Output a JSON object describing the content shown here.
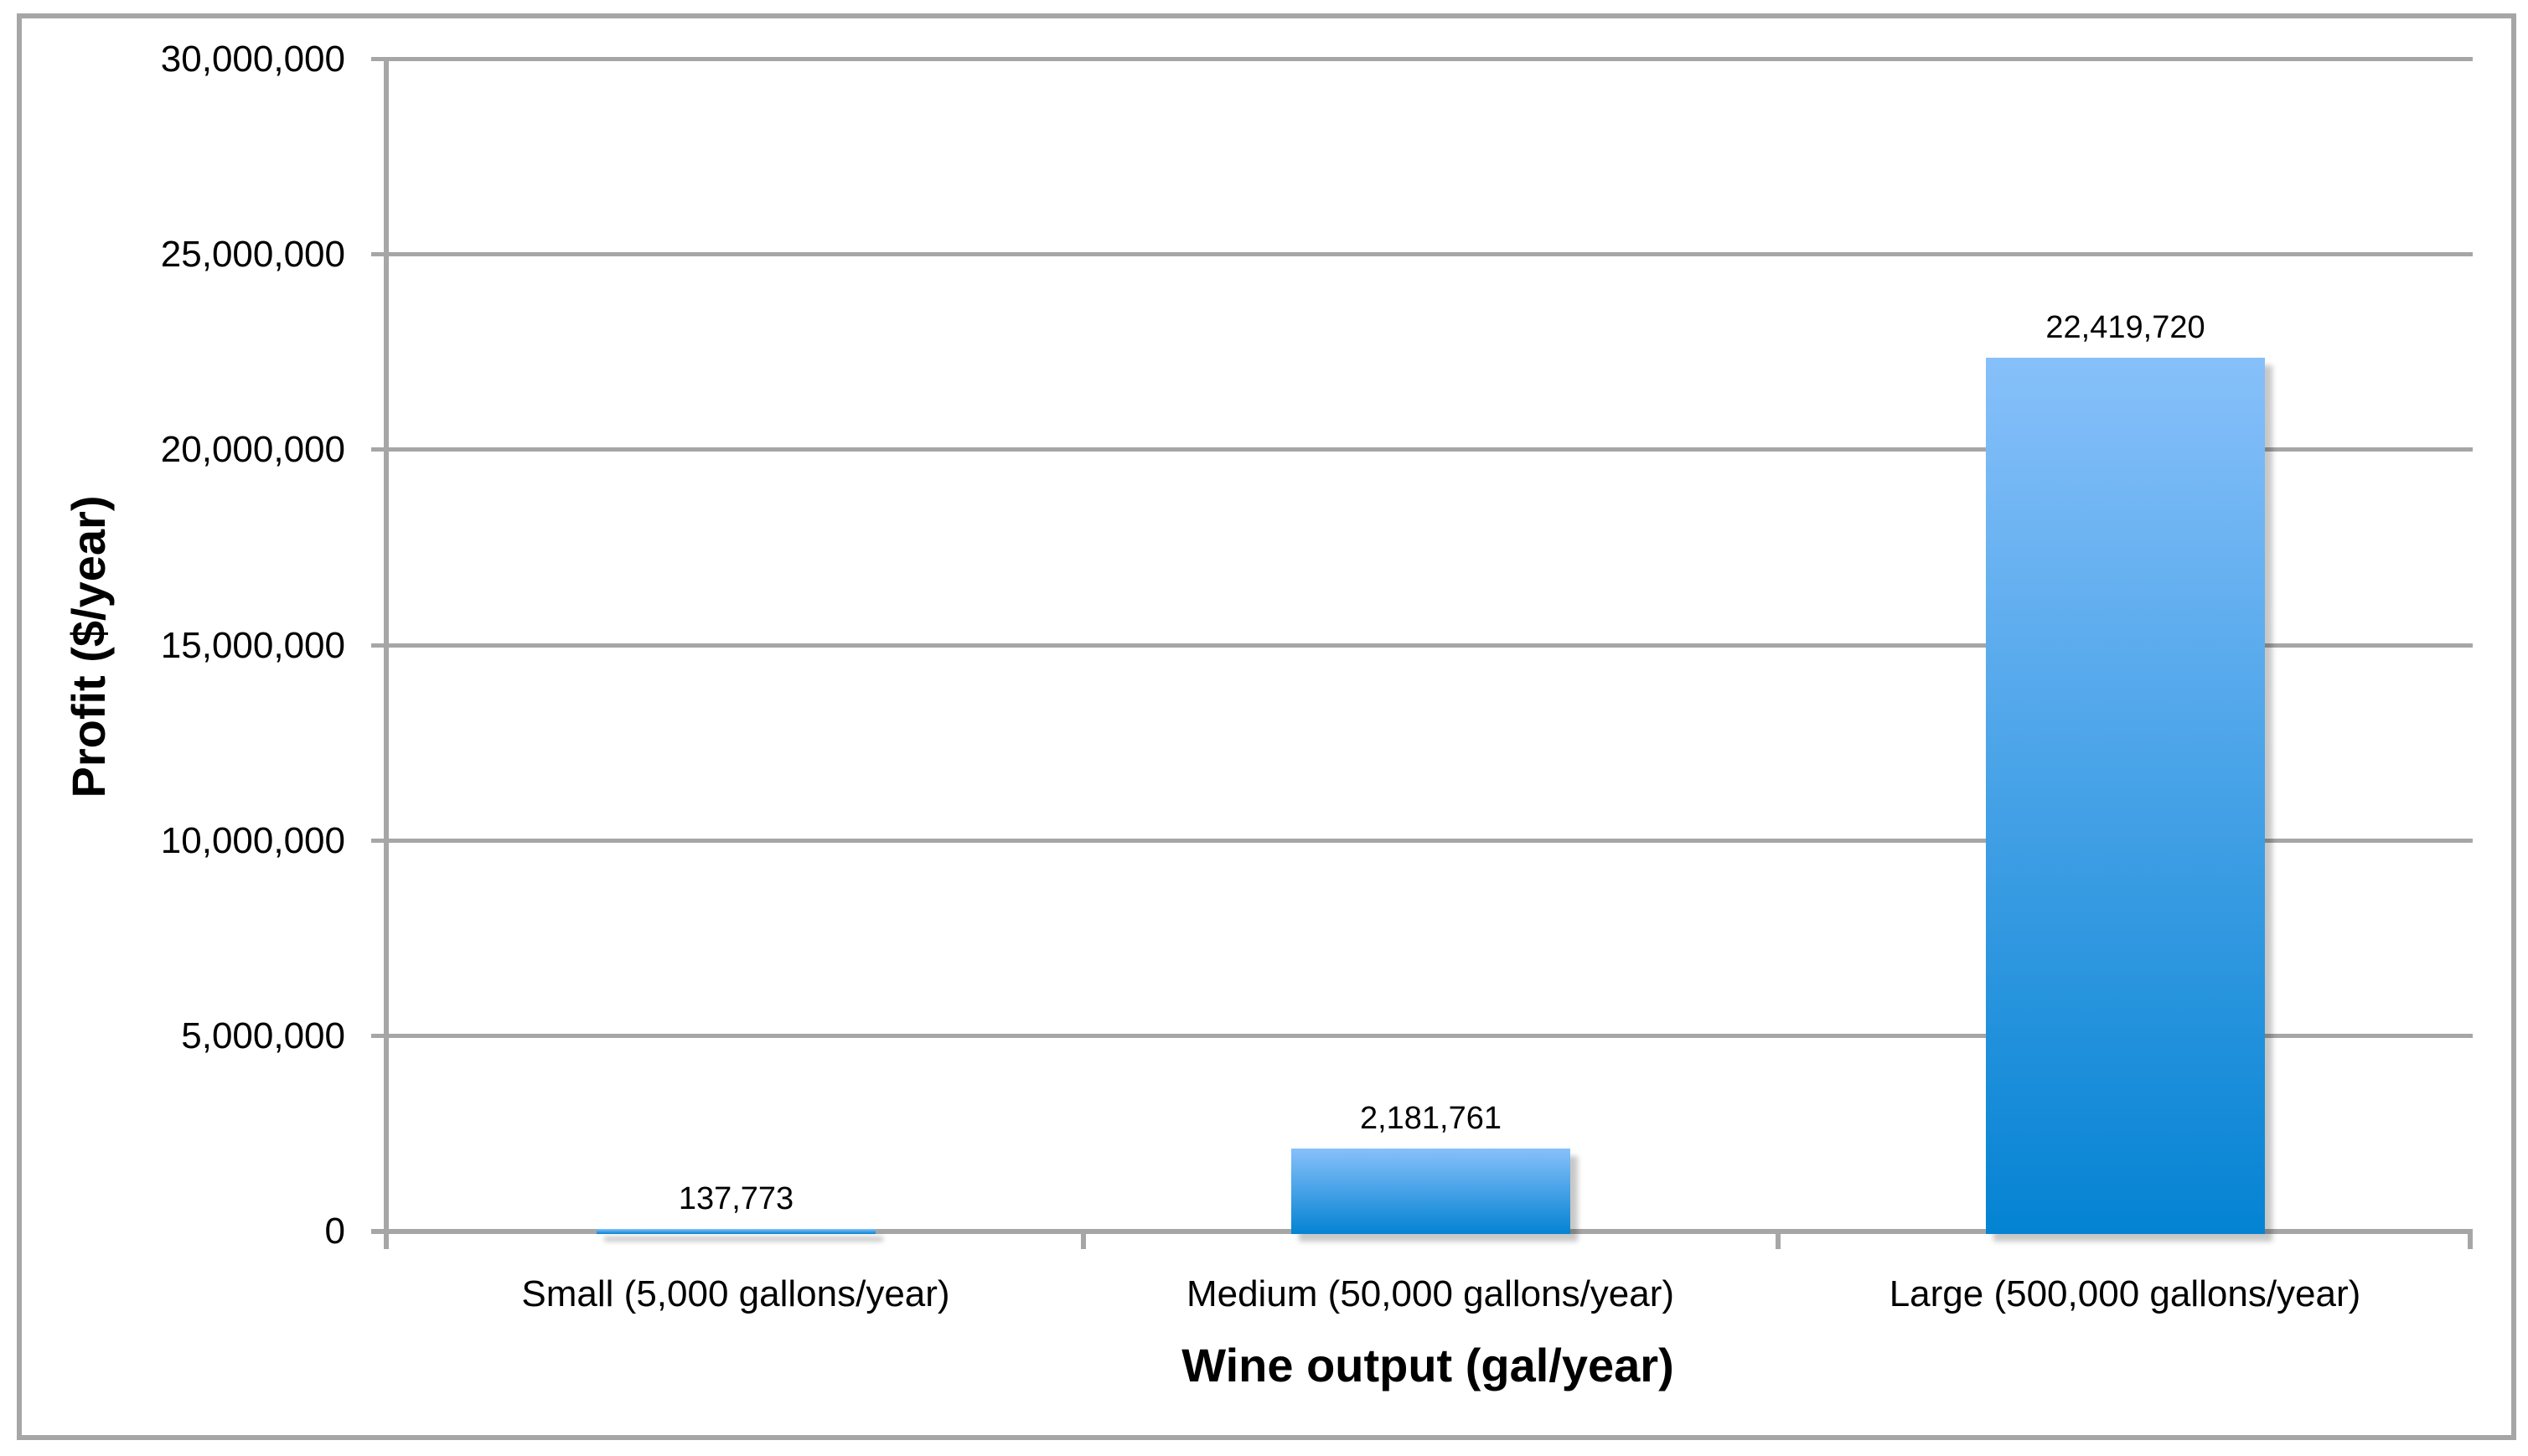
{
  "chart_data": {
    "type": "bar",
    "title": "",
    "categories": [
      "Small (5,000 gallons/year)",
      "Medium (50,000 gallons/year)",
      "Large (500,000 gallons/year)"
    ],
    "values": [
      137773,
      2181761,
      22419720
    ],
    "data_labels": [
      "137,773",
      "2,181,761",
      "22,419,720"
    ],
    "xlabel": "Wine output (gal/year)",
    "ylabel": "Profit ($/year)",
    "ylim": [
      0,
      30000000
    ],
    "ytick_interval": 5000000,
    "ytick_labels": [
      "30,000,000",
      "25,000,000",
      "20,000,000",
      "15,000,000",
      "10,000,000",
      "5,000,000",
      "0"
    ],
    "grid": true,
    "legend_visible": false,
    "bar_color_top": "#87c0fa",
    "bar_color_bottom": "#0483d3",
    "axis_color": "#a6a6a6",
    "text_color": "#000000"
  }
}
